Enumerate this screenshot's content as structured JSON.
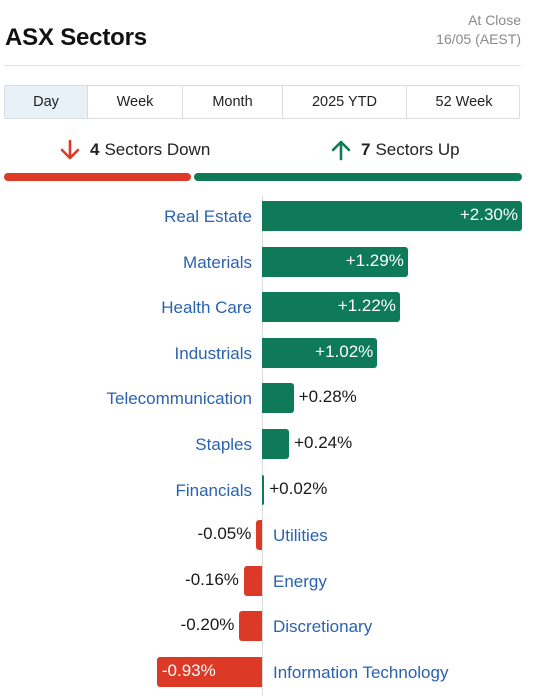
{
  "header": {
    "title": "ASX Sectors",
    "status_line1": "At Close",
    "status_line2": "16/05 (AEST)"
  },
  "tabs": [
    {
      "label": "Day",
      "active": true
    },
    {
      "label": "Week",
      "active": false
    },
    {
      "label": "Month",
      "active": false
    },
    {
      "label": "2025 YTD",
      "active": false
    },
    {
      "label": "52 Week",
      "active": false
    }
  ],
  "summary": {
    "down_count": "4",
    "down_label": "Sectors Down",
    "up_count": "7",
    "up_label": "Sectors Up",
    "down_color": "#dc3a26",
    "up_color": "#0e7a57"
  },
  "sectors": [
    {
      "name": "Real Estate",
      "value_text": "+2.30%",
      "value": 2.3
    },
    {
      "name": "Materials",
      "value_text": "+1.29%",
      "value": 1.29
    },
    {
      "name": "Health Care",
      "value_text": "+1.22%",
      "value": 1.22
    },
    {
      "name": "Industrials",
      "value_text": "+1.02%",
      "value": 1.02
    },
    {
      "name": "Telecommunication",
      "value_text": "+0.28%",
      "value": 0.28
    },
    {
      "name": "Staples",
      "value_text": "+0.24%",
      "value": 0.24
    },
    {
      "name": "Financials",
      "value_text": "+0.02%",
      "value": 0.02
    },
    {
      "name": "Utilities",
      "value_text": "-0.05%",
      "value": -0.05
    },
    {
      "name": "Energy",
      "value_text": "-0.16%",
      "value": -0.16
    },
    {
      "name": "Discretionary",
      "value_text": "-0.20%",
      "value": -0.2
    },
    {
      "name": "Information Technology",
      "value_text": "-0.93%",
      "value": -0.93
    }
  ]
}
